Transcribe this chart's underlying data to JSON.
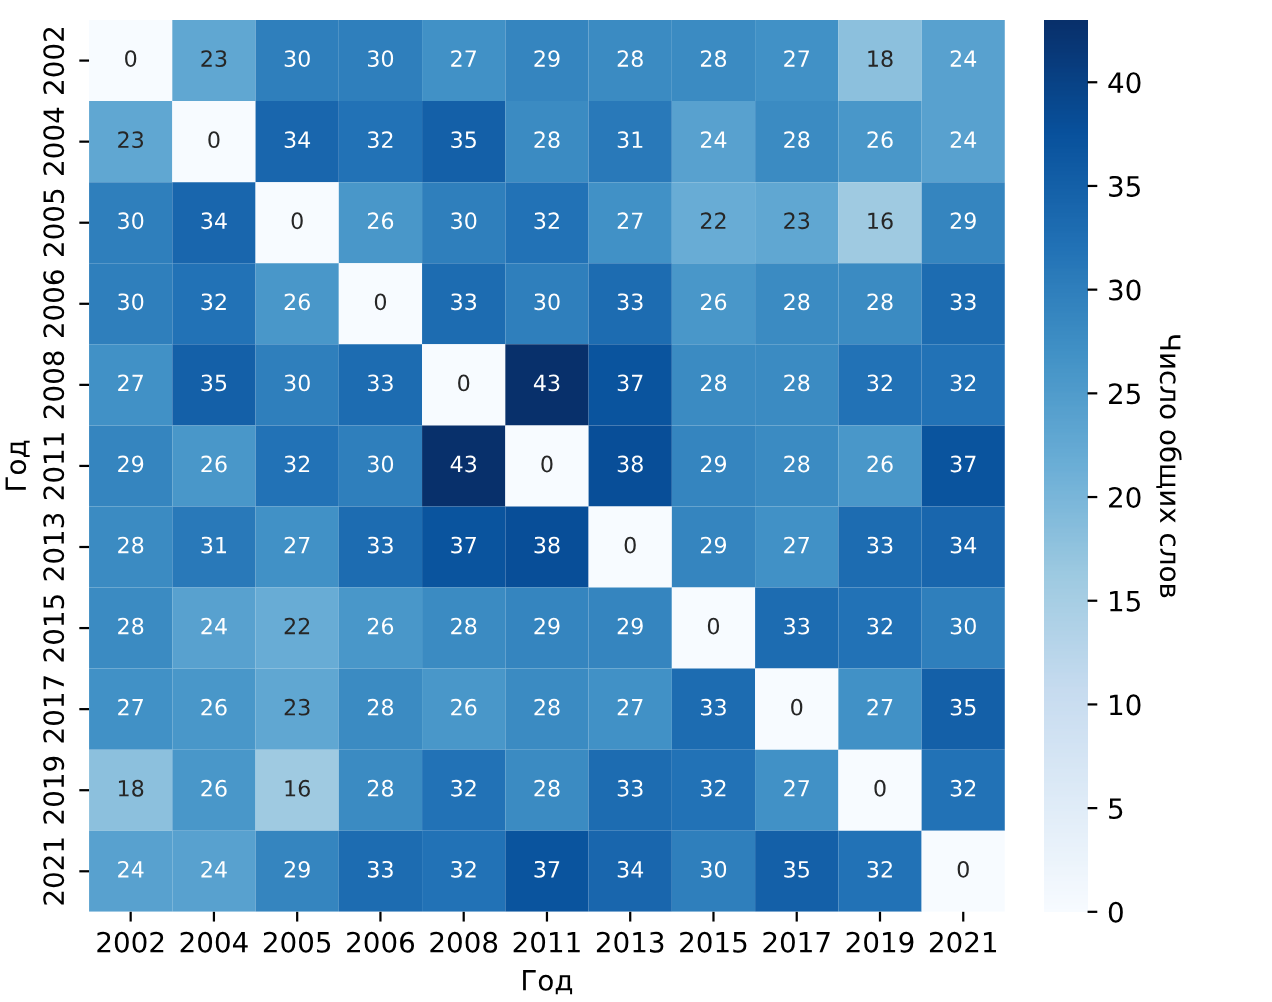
{
  "chart_data": {
    "type": "heatmap",
    "xlabel": "Год",
    "ylabel": "Год",
    "clabel": "Число общих слов",
    "categories": [
      "2002",
      "2004",
      "2005",
      "2006",
      "2008",
      "2011",
      "2013",
      "2015",
      "2017",
      "2019",
      "2021"
    ],
    "y_categories": [
      "2002",
      "2004",
      "2005",
      "2006",
      "2008",
      "2011",
      "2013",
      "2015",
      "2017",
      "2019",
      "2021"
    ],
    "cells": [
      [
        0,
        23,
        30,
        30,
        27,
        29,
        28,
        28,
        27,
        18,
        24
      ],
      [
        23,
        0,
        34,
        32,
        35,
        28,
        31,
        24,
        28,
        26,
        24
      ],
      [
        30,
        34,
        0,
        26,
        30,
        32,
        27,
        22,
        23,
        16,
        29
      ],
      [
        30,
        32,
        26,
        0,
        33,
        30,
        33,
        26,
        28,
        28,
        33
      ],
      [
        27,
        35,
        30,
        33,
        0,
        43,
        37,
        28,
        28,
        32,
        32
      ],
      [
        29,
        26,
        32,
        30,
        43,
        0,
        38,
        29,
        28,
        26,
        37
      ],
      [
        28,
        31,
        27,
        33,
        37,
        38,
        0,
        29,
        27,
        33,
        34
      ],
      [
        28,
        24,
        22,
        26,
        28,
        29,
        29,
        0,
        33,
        32,
        30
      ],
      [
        27,
        26,
        23,
        28,
        26,
        28,
        27,
        33,
        0,
        27,
        35
      ],
      [
        18,
        26,
        16,
        28,
        32,
        28,
        33,
        32,
        27,
        0,
        32
      ],
      [
        24,
        24,
        29,
        33,
        32,
        37,
        34,
        30,
        35,
        32,
        0
      ]
    ],
    "data_labels": true,
    "clim": [
      0,
      43
    ],
    "cticks": [
      0,
      5,
      10,
      15,
      20,
      25,
      30,
      35,
      40
    ]
  }
}
